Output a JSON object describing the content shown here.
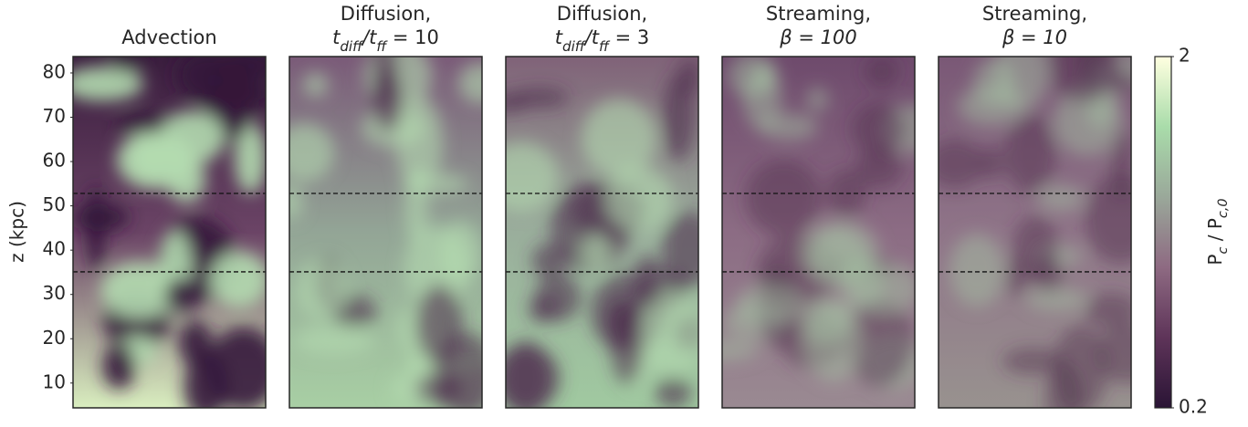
{
  "chart_data": {
    "type": "image-panels",
    "panels": [
      {
        "title": [
          "Advection"
        ]
      },
      {
        "title": [
          "Diffusion,"
        ],
        "subtitle": [
          "t",
          "diff",
          "/t",
          "ff",
          " = 10"
        ]
      },
      {
        "title": [
          "Diffusion,"
        ],
        "subtitle": [
          "t",
          "diff",
          "/t",
          "ff",
          " = 3"
        ]
      },
      {
        "title": [
          "Streaming,"
        ],
        "subtitle": [
          "β = 100"
        ]
      },
      {
        "title": [
          "Streaming,"
        ],
        "subtitle": [
          "β = 10"
        ]
      }
    ],
    "y_label": "z (kpc)",
    "ylim": [
      4.4,
      83.7
    ],
    "yticks": [
      10,
      20,
      30,
      40,
      50,
      60,
      70,
      80
    ],
    "hlines": [
      52.8,
      35.1
    ],
    "colorbar": {
      "label": [
        "P",
        "c",
        " / P",
        "c,0"
      ],
      "clim": [
        0.2,
        2
      ],
      "log": true,
      "ticks": [
        0.2,
        2
      ],
      "colors": [
        "#2a1435",
        "#5e3459",
        "#8e6a82",
        "#9aa89a",
        "#a9dcaa",
        "#ffffe0"
      ]
    }
  }
}
